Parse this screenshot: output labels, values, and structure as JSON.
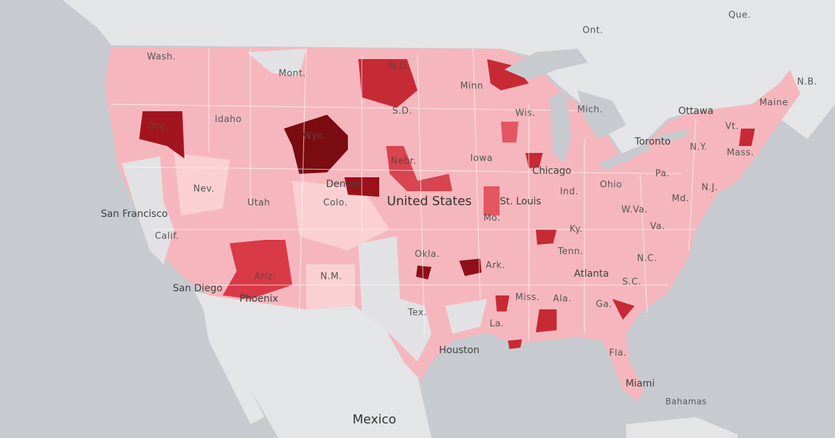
{
  "map": {
    "labels": [
      {
        "text": "Wash."
      },
      {
        "text": "Mont."
      },
      {
        "text": "N.D."
      },
      {
        "text": "Minn"
      },
      {
        "text": "Ont."
      },
      {
        "text": "Que."
      },
      {
        "text": "N.B."
      },
      {
        "text": "Maine"
      },
      {
        "text": "Ottawa"
      },
      {
        "text": "Mich."
      },
      {
        "text": "Wis."
      },
      {
        "text": "S.D."
      },
      {
        "text": "Idaho"
      },
      {
        "text": "Ore."
      },
      {
        "text": "Wyo."
      },
      {
        "text": "Vt."
      },
      {
        "text": "N.Y."
      },
      {
        "text": "Mass."
      },
      {
        "text": "Toronto"
      },
      {
        "text": "Nebr."
      },
      {
        "text": "Iowa"
      },
      {
        "text": "Chicago"
      },
      {
        "text": "Pa."
      },
      {
        "text": "N.J."
      },
      {
        "text": "Nev."
      },
      {
        "text": "Denver"
      },
      {
        "text": "Ohio"
      },
      {
        "text": "Ind."
      },
      {
        "text": "Md."
      },
      {
        "text": "Utah"
      },
      {
        "text": "Colo."
      },
      {
        "text": "United States"
      },
      {
        "text": "St. Louis"
      },
      {
        "text": "W.Va."
      },
      {
        "text": "San Francisco"
      },
      {
        "text": "Calif."
      },
      {
        "text": "Mo."
      },
      {
        "text": "Va."
      },
      {
        "text": "Ky."
      },
      {
        "text": "Tenn."
      },
      {
        "text": "N.C."
      },
      {
        "text": "Okla."
      },
      {
        "text": "Ark."
      },
      {
        "text": "Atlanta"
      },
      {
        "text": "S.C."
      },
      {
        "text": "N.M."
      },
      {
        "text": "Ariz."
      },
      {
        "text": "San Diego"
      },
      {
        "text": "Phoenix"
      },
      {
        "text": "Miss."
      },
      {
        "text": "Ala."
      },
      {
        "text": "Ga."
      },
      {
        "text": "Tex."
      },
      {
        "text": "La."
      },
      {
        "text": "Houston"
      },
      {
        "text": "Fla."
      },
      {
        "text": "Miami"
      },
      {
        "text": "Bahamas"
      },
      {
        "text": "Mexico"
      }
    ]
  }
}
